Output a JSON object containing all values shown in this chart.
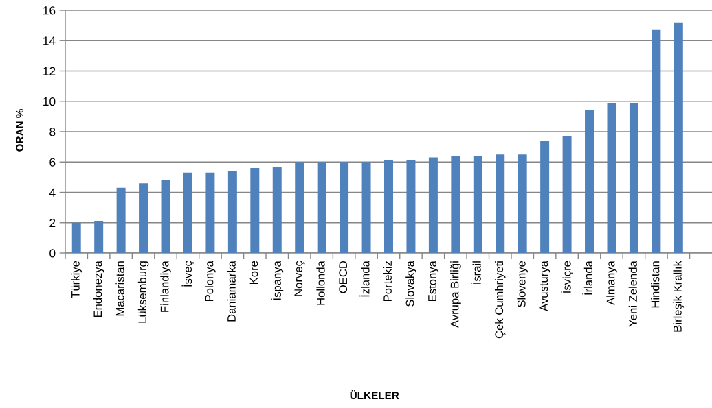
{
  "chart_data": {
    "type": "bar",
    "categories": [
      "Türkiye",
      "Endonezya",
      "Macaristan",
      "Lüksemburg",
      "Finlandiya",
      "İsveç",
      "Polonya",
      "Daniamarka",
      "Kore",
      "İspanya",
      "Norveç",
      "Hollonda",
      "OECD",
      "İzlanda",
      "Portekiz",
      "Slovakya",
      "Estonya",
      "Avrupa Birliği",
      "İsrail",
      "Çek Cumhriyeti",
      "Slovenye",
      "Avusturya",
      "İsviçre",
      "İrlanda",
      "Almanya",
      "Yeni Zelenda",
      "Hindistan",
      "Birleşik Krallık"
    ],
    "values": [
      2.0,
      2.1,
      4.3,
      4.6,
      4.8,
      5.3,
      5.3,
      5.4,
      5.6,
      5.7,
      6.0,
      6.0,
      6.0,
      6.0,
      6.1,
      6.1,
      6.3,
      6.4,
      6.4,
      6.5,
      6.5,
      7.4,
      7.7,
      9.4,
      9.9,
      9.9,
      14.7,
      15.2
    ],
    "color": "#4f81bd",
    "xlabel": "ÜLKELER",
    "ylabel": "ORAN %",
    "ylim": [
      0,
      16
    ],
    "yticks": [
      0,
      2,
      4,
      6,
      8,
      10,
      12,
      14,
      16
    ],
    "grid": "y"
  }
}
